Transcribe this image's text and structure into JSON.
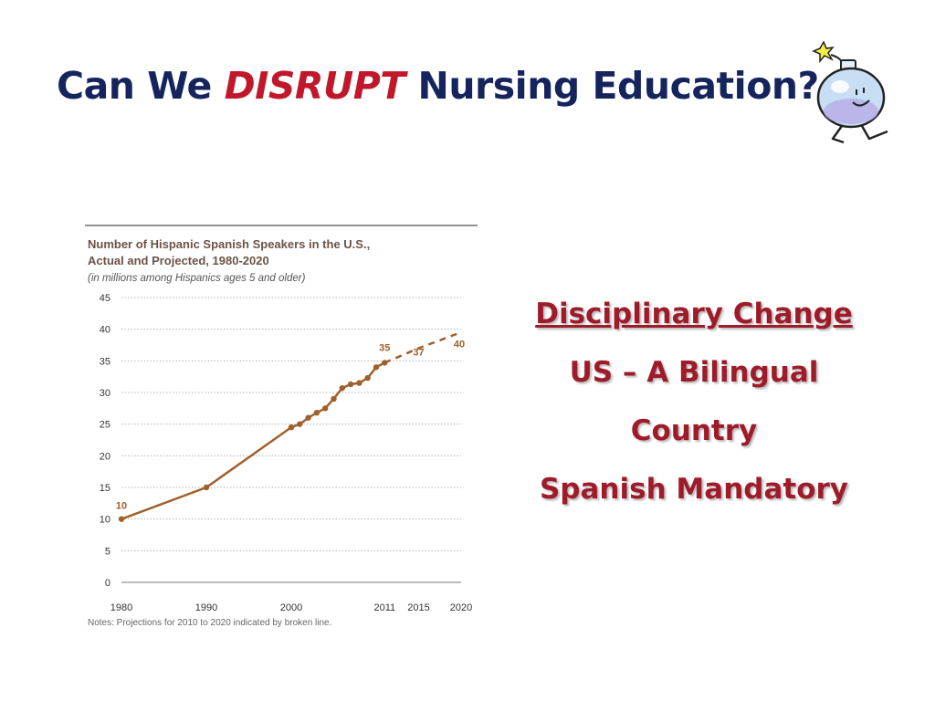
{
  "slide": {
    "title_prefix": "Can We ",
    "title_accent": "DISRUPT",
    "title_suffix": " Nursing Education?",
    "right_text": {
      "heading": "Disciplinary Change",
      "line1": "US – A Bilingual",
      "line2": "Country",
      "line3": "Spanish Mandatory"
    }
  },
  "icon": "bomb-smiley-icon",
  "colors": {
    "title": "#16245e",
    "accent": "#c0182a",
    "right_text": "#9e1b2a",
    "series": "#a0602d",
    "chart_title": "#6b5347"
  },
  "chart_data": {
    "type": "line",
    "title_line1": "Number of Hispanic Spanish  Speakers in the U.S.,",
    "title_line2": "Actual and Projected, 1980-2020",
    "subtitle": "(in millions among Hispanics ages 5 and older)",
    "note": "Notes: Projections for 2010 to 2020 indicated by broken line.",
    "xlim": [
      1980,
      2020
    ],
    "ylim": [
      0,
      45
    ],
    "x_ticks": [
      1980,
      1990,
      2000,
      2011,
      2015,
      2020
    ],
    "y_ticks": [
      0,
      5,
      10,
      15,
      20,
      25,
      30,
      35,
      40,
      45
    ],
    "grid": true,
    "series": [
      {
        "name": "Actual",
        "line_style": "solid",
        "points": [
          [
            1980,
            10
          ],
          [
            1990,
            15
          ],
          [
            2000,
            24.5
          ],
          [
            2001,
            25
          ],
          [
            2002,
            26
          ],
          [
            2003,
            26.8
          ],
          [
            2004,
            27.5
          ],
          [
            2005,
            29
          ],
          [
            2006,
            30.7
          ],
          [
            2007,
            31.3
          ],
          [
            2008,
            31.5
          ],
          [
            2009,
            32.3
          ],
          [
            2010,
            34
          ],
          [
            2011,
            34.7
          ]
        ]
      },
      {
        "name": "Projected",
        "line_style": "dashed",
        "points": [
          [
            2011,
            34.7
          ],
          [
            2015,
            37
          ],
          [
            2020,
            39.5
          ]
        ]
      }
    ],
    "annotations": [
      {
        "text": "10",
        "x": 1980,
        "y": 10
      },
      {
        "text": "35",
        "x": 2011,
        "y": 35
      },
      {
        "text": "37",
        "x": 2015,
        "y": 37
      },
      {
        "text": "40",
        "x": 2020,
        "y": 40
      }
    ]
  }
}
